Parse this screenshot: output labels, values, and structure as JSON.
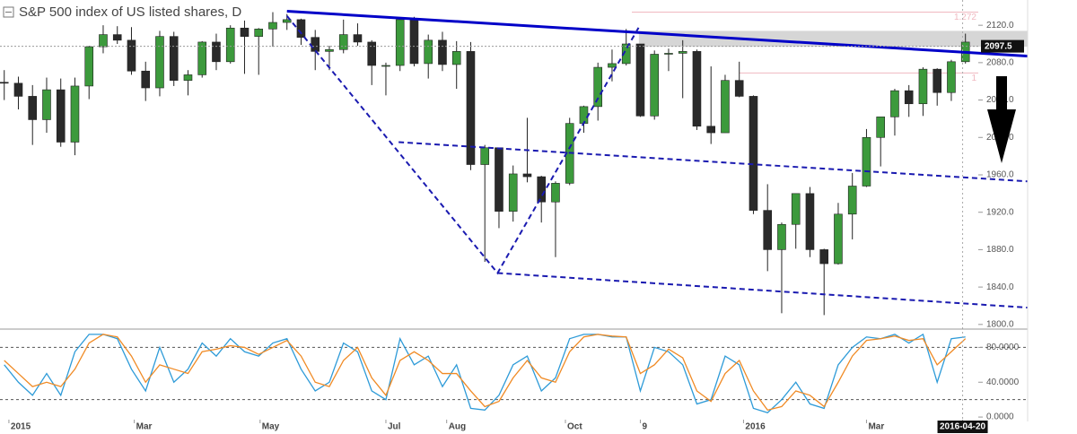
{
  "chart_data": [
    {
      "type": "candlestick",
      "title": "S&P 500 index of US listed shares, D",
      "x": [
        0,
        1,
        2,
        3,
        4,
        5,
        6,
        7,
        8,
        9,
        10,
        11,
        12,
        13,
        14,
        15,
        16,
        17,
        18,
        19,
        20,
        21,
        22,
        23,
        24,
        25,
        26,
        27,
        28,
        29,
        30,
        31,
        32,
        33,
        34,
        35,
        36,
        37,
        38,
        39,
        40,
        41,
        42,
        43,
        44,
        45,
        46,
        47,
        48,
        49,
        50,
        51,
        52,
        53,
        54,
        55,
        56,
        57,
        58,
        59,
        60,
        61,
        62,
        63,
        64,
        65,
        66,
        67,
        68
      ],
      "open": [
        2059,
        2058,
        2044,
        2019,
        2051,
        1995,
        2055,
        2097,
        2110,
        2104,
        2071,
        2053,
        2108,
        2061,
        2067,
        2102,
        2081,
        2117,
        2108,
        2116,
        2123,
        2126,
        2107,
        2092,
        2094,
        2110,
        2102,
        2077,
        2077,
        2126,
        2079,
        2104,
        2078,
        2092,
        1971,
        1989,
        1921,
        1961,
        1958,
        1931,
        1951,
        2015,
        2033,
        2075,
        2079,
        2100,
        2023,
        2089,
        2090,
        2092,
        2012,
        2005,
        2061,
        2044,
        1922,
        1880,
        1907,
        1940,
        1880,
        1865,
        1918,
        1948,
        2000,
        2022,
        2050,
        2036,
        2073,
        2048,
        2081
      ],
      "high": [
        2072,
        2065,
        2056,
        2064,
        2063,
        2064,
        2098,
        2120,
        2119,
        2118,
        2081,
        2114,
        2113,
        2072,
        2103,
        2111,
        2120,
        2125,
        2117,
        2134,
        2132,
        2127,
        2115,
        2098,
        2126,
        2122,
        2104,
        2080,
        2128,
        2129,
        2110,
        2113,
        2103,
        2102,
        1992,
        1989,
        1970,
        2021,
        1959,
        1953,
        2021,
        2034,
        2080,
        2094,
        2116,
        2100,
        2093,
        2095,
        2104,
        2094,
        2076,
        2067,
        2081,
        2045,
        1950,
        1909,
        1940,
        1947,
        1881,
        1930,
        1962,
        2009,
        2022,
        2052,
        2056,
        2075,
        2074,
        2083,
        2111
      ],
      "low": [
        2040,
        2030,
        1992,
        2005,
        1990,
        1981,
        2041,
        2090,
        2100,
        2067,
        2039,
        2044,
        2055,
        2045,
        2064,
        2072,
        2079,
        2068,
        2067,
        2097,
        2115,
        2099,
        2072,
        2072,
        2090,
        2098,
        2056,
        2045,
        2071,
        2076,
        2063,
        2071,
        2052,
        1965,
        1867,
        1903,
        1910,
        1952,
        1909,
        1872,
        1949,
        2005,
        2018,
        2060,
        2077,
        2022,
        2019,
        2071,
        2042,
        2008,
        1993,
        2005,
        2043,
        1918,
        1857,
        1812,
        1881,
        1872,
        1810,
        1864,
        1891,
        1947,
        1969,
        2002,
        2022,
        2023,
        2034,
        2039,
        2079
      ],
      "close": [
        2058,
        2044,
        2019,
        2051,
        1995,
        2055,
        2097,
        2110,
        2104,
        2071,
        2053,
        2108,
        2061,
        2067,
        2102,
        2081,
        2117,
        2108,
        2116,
        2123,
        2126,
        2107,
        2092,
        2094,
        2110,
        2102,
        2077,
        2077,
        2126,
        2079,
        2104,
        2078,
        2092,
        1971,
        1989,
        1921,
        1961,
        1958,
        1931,
        1951,
        2015,
        2033,
        2075,
        2079,
        2100,
        2023,
        2089,
        2090,
        2092,
        2012,
        2005,
        2061,
        2044,
        1922,
        1880,
        1907,
        1940,
        1880,
        1865,
        1918,
        1948,
        2000,
        2022,
        2050,
        2036,
        2073,
        2048,
        2081,
        2102
      ],
      "up_color": "#3c9a3c",
      "down_color": "#2a2a2a",
      "xlim": [
        -0.3,
        72.4
      ],
      "ylim": [
        1796,
        2147
      ],
      "yticks": [
        {
          "value": 1800,
          "label": "1800.0"
        },
        {
          "value": 1840,
          "label": "1840.0"
        },
        {
          "value": 1880,
          "label": "1880.0"
        },
        {
          "value": 1920,
          "label": "1920.0"
        },
        {
          "value": 1960,
          "label": "1960.0"
        },
        {
          "value": 2000,
          "label": "2000.0"
        },
        {
          "value": 2040,
          "label": "2040.0"
        },
        {
          "value": 2080,
          "label": "2080.0"
        },
        {
          "value": 2120,
          "label": "2120.0"
        }
      ],
      "last_price": 2097.5,
      "levels": [
        {
          "label": "1.272",
          "value": 2134,
          "x_start": 44.4,
          "color": "#f0b8c0"
        },
        {
          "label": "1",
          "value": 2069,
          "x_start": 52,
          "color": "#f0b8c0"
        }
      ],
      "zone": {
        "from": 2097,
        "to": 2114,
        "x_start": 44.9,
        "color": "#cfcfcf"
      },
      "lines": [
        {
          "points": [
            [
              20,
              2135
            ],
            [
              72.4,
              2087
            ]
          ],
          "color": "#0000c8",
          "style": "solid"
        },
        {
          "points": [
            [
              20,
              2130
            ],
            [
              34.9,
              1855
            ],
            [
              44.9,
              2118
            ]
          ],
          "color": "#1a1ab0",
          "style": "dashed"
        },
        {
          "points": [
            [
              27.9,
              1995
            ],
            [
              72.4,
              1953
            ]
          ],
          "color": "#1a1ab0",
          "style": "dashed"
        },
        {
          "points": [
            [
              34.9,
              1855
            ],
            [
              72.4,
              1818
            ]
          ],
          "color": "#1a1ab0",
          "style": "dashed"
        }
      ]
    },
    {
      "type": "line",
      "x": [
        0,
        1,
        2,
        3,
        4,
        5,
        6,
        7,
        8,
        9,
        10,
        11,
        12,
        13,
        14,
        15,
        16,
        17,
        18,
        19,
        20,
        21,
        22,
        23,
        24,
        25,
        26,
        27,
        28,
        29,
        30,
        31,
        32,
        33,
        34,
        35,
        36,
        37,
        38,
        39,
        40,
        41,
        42,
        43,
        44,
        45,
        46,
        47,
        48,
        49,
        50,
        51,
        52,
        53,
        54,
        55,
        56,
        57,
        58,
        59,
        60,
        61,
        62,
        63,
        64,
        65,
        66,
        67,
        68
      ],
      "series": [
        {
          "color": "#2e9bd8",
          "values": [
            60,
            40,
            25,
            50,
            25,
            75,
            95,
            95,
            90,
            55,
            30,
            80,
            40,
            55,
            85,
            70,
            90,
            75,
            70,
            85,
            90,
            55,
            30,
            40,
            85,
            75,
            30,
            20,
            90,
            60,
            70,
            35,
            60,
            10,
            8,
            25,
            60,
            70,
            30,
            45,
            90,
            95,
            95,
            92,
            92,
            30,
            80,
            75,
            60,
            15,
            20,
            70,
            60,
            10,
            5,
            20,
            40,
            15,
            10,
            60,
            80,
            92,
            90,
            95,
            85,
            95,
            40,
            90,
            92
          ]
        },
        {
          "color": "#f08a24",
          "values": [
            65,
            50,
            35,
            40,
            35,
            55,
            85,
            95,
            92,
            70,
            40,
            60,
            55,
            50,
            75,
            78,
            82,
            80,
            72,
            80,
            88,
            70,
            40,
            35,
            65,
            80,
            45,
            25,
            65,
            75,
            65,
            50,
            50,
            30,
            12,
            18,
            45,
            65,
            45,
            40,
            75,
            92,
            95,
            93,
            92,
            50,
            60,
            78,
            68,
            30,
            18,
            50,
            65,
            30,
            8,
            12,
            30,
            25,
            12,
            40,
            70,
            88,
            90,
            93,
            88,
            90,
            60,
            75,
            90
          ]
        }
      ],
      "bands": [
        20,
        80
      ],
      "xlim": [
        -0.3,
        72.4
      ],
      "ylim": [
        -3,
        100
      ],
      "yticks": [
        {
          "value": 0,
          "label": "0.0000"
        },
        {
          "value": 40,
          "label": "40.0000"
        },
        {
          "value": 80,
          "label": "80.0000"
        }
      ],
      "xticks": [
        {
          "value": 0.33,
          "label": "2015"
        },
        {
          "value": 9.2,
          "label": "Mar"
        },
        {
          "value": 18.1,
          "label": "May"
        },
        {
          "value": 27,
          "label": "Jul"
        },
        {
          "value": 31.3,
          "label": "Aug"
        },
        {
          "value": 39.7,
          "label": "Oct"
        },
        {
          "value": 45,
          "label": "9"
        },
        {
          "value": 52.3,
          "label": "2016"
        },
        {
          "value": 61,
          "label": "Mar"
        },
        {
          "value": 67.8,
          "label": "2016-04-20"
        }
      ]
    }
  ]
}
